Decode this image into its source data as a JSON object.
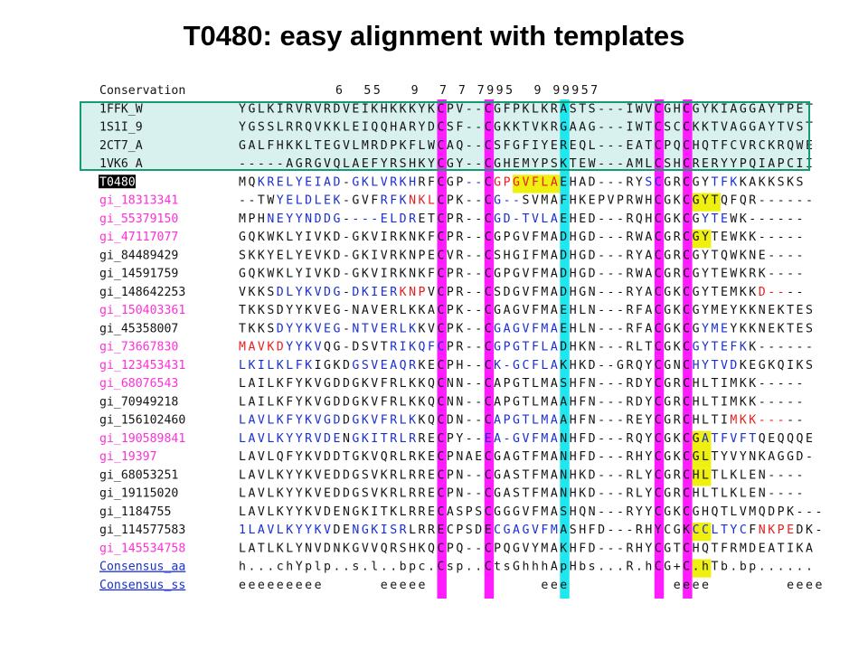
{
  "title": "T0480: easy alignment with templates",
  "colors": {
    "template_bg": "#d8f1ee",
    "template_border": "#139c74",
    "magenta": "#ff10ff",
    "cyan": "#13e6ee",
    "yellow": "#f0f010",
    "pink_name": "#ff2fd8",
    "blue_link": "#1a2fd0",
    "blue_res": "#1a2fd0",
    "red_res": "#e81e1e",
    "black": "#141414"
  },
  "conservation": {
    "label": "Conservation",
    "marks": [
      [
        3,
        "6"
      ],
      [
        6,
        "5"
      ],
      [
        7,
        "5"
      ],
      [
        11,
        "9"
      ],
      [
        14,
        "7"
      ],
      [
        16,
        "7"
      ],
      [
        18,
        "7"
      ],
      [
        19,
        "9"
      ],
      [
        20,
        "9"
      ],
      [
        21,
        "5"
      ],
      [
        24,
        "9"
      ],
      [
        26,
        "9"
      ],
      [
        27,
        "9"
      ],
      [
        28,
        "9"
      ],
      [
        29,
        "5"
      ],
      [
        30,
        "7"
      ]
    ]
  },
  "rows": [
    {
      "name": "1FFK_W",
      "nc": "k",
      "seq": "YGLKIRVRVRDVEIKHKKKYKCPV--CGFPKLKRASTS---IWVCGHCGYKIAGGAYTPET",
      "template": true
    },
    {
      "name": "1S1I_9",
      "nc": "k",
      "seq": "YGSSLRRQVKKLEIQQHARYDCSF--CGKKTVKRGAAG---IWTCSCCKKTVAGGAYTVST",
      "template": true
    },
    {
      "name": "2CT7_A",
      "nc": "k",
      "seq": "GALFHKKLTEGVLMRDPKFLWCAQ--CSFGFIYEREQL---EATCPQCHQTFCVRCKRQWE",
      "template": true
    },
    {
      "name": "1VK6_A",
      "nc": "k",
      "seq": "-----AGRGVQLAEFYRSHKYCGY--CGHEMYPSKTEW---AMLCSHCRERYYPQIAPCII",
      "template": true
    },
    {
      "name": "T0480",
      "nc": "t",
      "seq": "MQKRELYEIAD-GKLVRKHRFCGP--CGPGVFLAEHAD---RYSCGRCGYTFKKAKKSKS"
    },
    {
      "name": "gi_18313341",
      "nc": "p",
      "seq": "--TWYELDLEK-GVFRFKNKLCPK--CG--SVMAFHKEPVPRWHCGKCGYTQFQR------"
    },
    {
      "name": "gi_55379150",
      "nc": "p",
      "seq": "MPHNEYYNDDG----ELDRETCPR--CGD-TVLAEHED---RQHCGKCGYTEWK------"
    },
    {
      "name": "gi_47117077",
      "nc": "p",
      "seq": "GQKWKLYIVKD-GKVIRKNKFCPR--CGPGVFMADHGD---RWACGRCGYTEWKK-----"
    },
    {
      "name": "gi_84489429",
      "nc": "k",
      "seq": "SKKYELYEVKD-GKIVRKNPECVR--CSHGIFMADHGD---RYACGRCGYTQWKNE----"
    },
    {
      "name": "gi_14591759",
      "nc": "k",
      "seq": "GQKWKLYIVKD-GKVIRKNKFCPR--CGPGVFMADHGD---RWACGRCGYTEWKRK----"
    },
    {
      "name": "gi_148642253",
      "nc": "k",
      "seq": "VKKSDLYKVDG-DKIERKNPVCPR--CSDGVFMADHGN---RYACGKCGYTEMKKD----"
    },
    {
      "name": "gi_150403361",
      "nc": "p",
      "seq": "TKKSDYYKVEG-NAVERLKKACPK--CGAGVFMAEHLN---RFACGKCGYMEYKKNEKTES"
    },
    {
      "name": "gi_45358007",
      "nc": "k",
      "seq": "TKKSDYYKVEG-NTVERLKKVCPK--CGAGVFMAEHLN---RFACGKCGYMEYKKNEKTES"
    },
    {
      "name": "gi_73667830",
      "nc": "p",
      "seq": "MAVKDYYKVQG-DSVTRIKQFCPR--CGPGTFLADHKN---RLTCGKCGYTEFKK------"
    },
    {
      "name": "gi_123453431",
      "nc": "p",
      "seq": "LKILKLFKIGKDGSVEAQRKECPH--CK-GCFLAKHKD--GRQYCGNCHYTVDKEGKQIKS"
    },
    {
      "name": "gi_68076543",
      "nc": "p",
      "seq": "LAILKFYKVGDDGKVFRLKKQCNN--CAPGTLMASHFN---RDYCGRCHLTIMKK-----"
    },
    {
      "name": "gi_70949218",
      "nc": "k",
      "seq": "LAILKFYKVGDDGKVFRLKKQCNN--CAPGTLMAAHFN---RDYCGRCHLTIMKK-----"
    },
    {
      "name": "gi_156102460",
      "nc": "k",
      "seq": "LAVLKFYKVGDDGKVFRLKKQCDN--CAPGTLMAAHFN---REYCGRCHLTIMKK-----"
    },
    {
      "name": "gi_190589841",
      "nc": "p",
      "seq": "LAVLKYYRVDENGKITRLRRECPY--EA-GVFMANHFD---RQYCGKCGATFVFTQEQQQE"
    },
    {
      "name": "gi_19397",
      "nc": "p",
      "seq": "LAVLQFYKVDDTGKVQRLRKECPNAECGAGTFMANHFD---RHYCGKCGLTYVYNKAGGD-"
    },
    {
      "name": "gi_68053251",
      "nc": "k",
      "seq": "LAVLKYYKVEDDGSVKRLRRECPN--CGASTFMANHKD---RLYCGRCHLTLKLEN----"
    },
    {
      "name": "gi_19115020",
      "nc": "k",
      "seq": "LAVLKYYKVEDDGSVKRLRRECPN--CGASTFMANHKD---RLYCGRCHLTLKLEN----"
    },
    {
      "name": "gi_1184755",
      "nc": "k",
      "seq": "LAVLKYYKVDENGKITKLRRECASPSCGGGVFMASHQN---RYYCGKCGHQTLVMQDPK---"
    },
    {
      "name": "gi_114577583",
      "nc": "k",
      "seq": "1LAVLKYYKVDENGKISRLRRECPSDECGAGVFMASHFD---RHYCGKCCLTYCFNKPEDK-"
    },
    {
      "name": "gi_145534758",
      "nc": "p",
      "seq": "LATLKLYNVDNKGVVQRSHKQCPQ--CPQGVYMAKHFD---RHYCGTCHQTFRMDEATIKA"
    },
    {
      "name": "Consensus_aa",
      "nc": "l",
      "seq": "h...chYplp..s.l..bpc.Csp..CtsGhhhApHbs...R.hCG+C.hTb.bp......"
    },
    {
      "name": "Consensus_ss",
      "nc": "l",
      "seq": "eeeeeeeee      eeeee            eee           eeee        eeee"
    }
  ]
}
